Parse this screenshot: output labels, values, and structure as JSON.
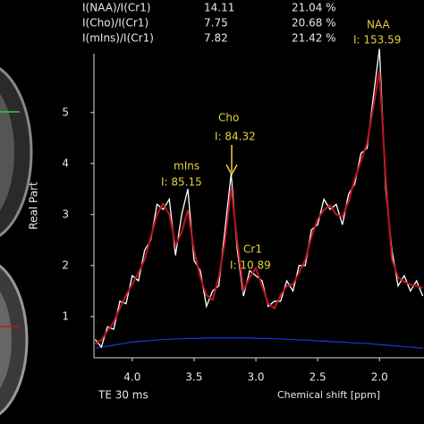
{
  "chart_data": {
    "type": "line",
    "ratio_table": [
      [
        "I(NAA)/I(Cr1)",
        "14.11",
        "21.04 %"
      ],
      [
        "I(Cho)/I(Cr1)",
        "7.75",
        "20.68 %"
      ],
      [
        "I(mIns)/I(Cr1)",
        "7.82",
        "21.42 %"
      ]
    ],
    "annotations": [
      {
        "name": "NAA",
        "text": "I: 153.59"
      },
      {
        "name": "Cho",
        "text": "I: 84.32"
      },
      {
        "name": "mIns",
        "text": "I: 85.15"
      },
      {
        "name": "Cr1",
        "text": "I: 10.89"
      }
    ],
    "y_label": "Real Part",
    "x_label": "Chemical shift [ppm]",
    "footnote": "TE 30 ms",
    "xlim": [
      4.31,
      1.64
    ],
    "ylim": [
      0.19,
      6.2
    ],
    "xticks": [
      {
        "value": 4.0,
        "label": "4.0"
      },
      3.5,
      {
        "value": 3.0,
        "label": "3.0"
      },
      2.5,
      {
        "value": 2.0,
        "label": "2.0"
      }
    ],
    "yticks": [
      1,
      2,
      3,
      4,
      5
    ],
    "x": [
      4.3,
      4.25,
      4.2,
      4.15,
      4.1,
      4.05,
      4.0,
      3.95,
      3.9,
      3.85,
      3.8,
      3.75,
      3.7,
      3.65,
      3.6,
      3.55,
      3.5,
      3.45,
      3.4,
      3.35,
      3.3,
      3.25,
      3.2,
      3.15,
      3.1,
      3.05,
      3.0,
      2.95,
      2.9,
      2.85,
      2.8,
      2.75,
      2.7,
      2.65,
      2.6,
      2.55,
      2.5,
      2.45,
      2.4,
      2.35,
      2.3,
      2.25,
      2.2,
      2.15,
      2.1,
      2.05,
      2.0,
      1.95,
      1.9,
      1.85,
      1.8,
      1.75,
      1.7,
      1.65
    ],
    "series": [
      {
        "name": "spectrum",
        "color": "#ffffff",
        "values": [
          0.55,
          0.4,
          0.8,
          0.75,
          1.3,
          1.25,
          1.8,
          1.7,
          2.3,
          2.5,
          3.2,
          3.1,
          3.3,
          2.2,
          3.0,
          3.5,
          2.1,
          1.9,
          1.2,
          1.5,
          1.6,
          2.7,
          3.8,
          2.3,
          1.4,
          1.9,
          1.8,
          1.7,
          1.2,
          1.3,
          1.3,
          1.7,
          1.5,
          2.0,
          2.0,
          2.7,
          2.8,
          3.3,
          3.1,
          3.2,
          2.8,
          3.4,
          3.6,
          4.2,
          4.3,
          5.3,
          6.25,
          3.5,
          2.3,
          1.6,
          1.8,
          1.5,
          1.7,
          1.4
        ]
      },
      {
        "name": "fit",
        "color": "#c0141c",
        "values": [
          0.46,
          0.54,
          0.72,
          0.89,
          1.16,
          1.42,
          1.63,
          1.86,
          2.12,
          2.56,
          3.0,
          3.21,
          3.0,
          2.39,
          2.65,
          3.09,
          2.3,
          1.77,
          1.42,
          1.33,
          1.77,
          2.47,
          3.53,
          2.47,
          1.51,
          1.77,
          1.95,
          1.6,
          1.25,
          1.16,
          1.42,
          1.6,
          1.63,
          1.86,
          2.12,
          2.56,
          2.91,
          3.09,
          3.18,
          3.0,
          2.96,
          3.26,
          3.7,
          4.05,
          4.4,
          5.11,
          5.81,
          3.7,
          2.12,
          1.77,
          1.68,
          1.63,
          1.6,
          1.56
        ]
      },
      {
        "name": "baseline",
        "color": "#1a2fd0",
        "values": [
          0.38,
          0.4,
          0.42,
          0.44,
          0.46,
          0.48,
          0.5,
          0.51,
          0.52,
          0.53,
          0.54,
          0.55,
          0.55,
          0.56,
          0.56,
          0.57,
          0.57,
          0.57,
          0.58,
          0.58,
          0.58,
          0.58,
          0.58,
          0.58,
          0.58,
          0.58,
          0.57,
          0.57,
          0.57,
          0.56,
          0.56,
          0.55,
          0.55,
          0.54,
          0.54,
          0.53,
          0.52,
          0.52,
          0.51,
          0.5,
          0.5,
          0.49,
          0.48,
          0.48,
          0.47,
          0.46,
          0.45,
          0.44,
          0.43,
          0.42,
          0.41,
          0.4,
          0.39,
          0.38
        ]
      }
    ]
  }
}
